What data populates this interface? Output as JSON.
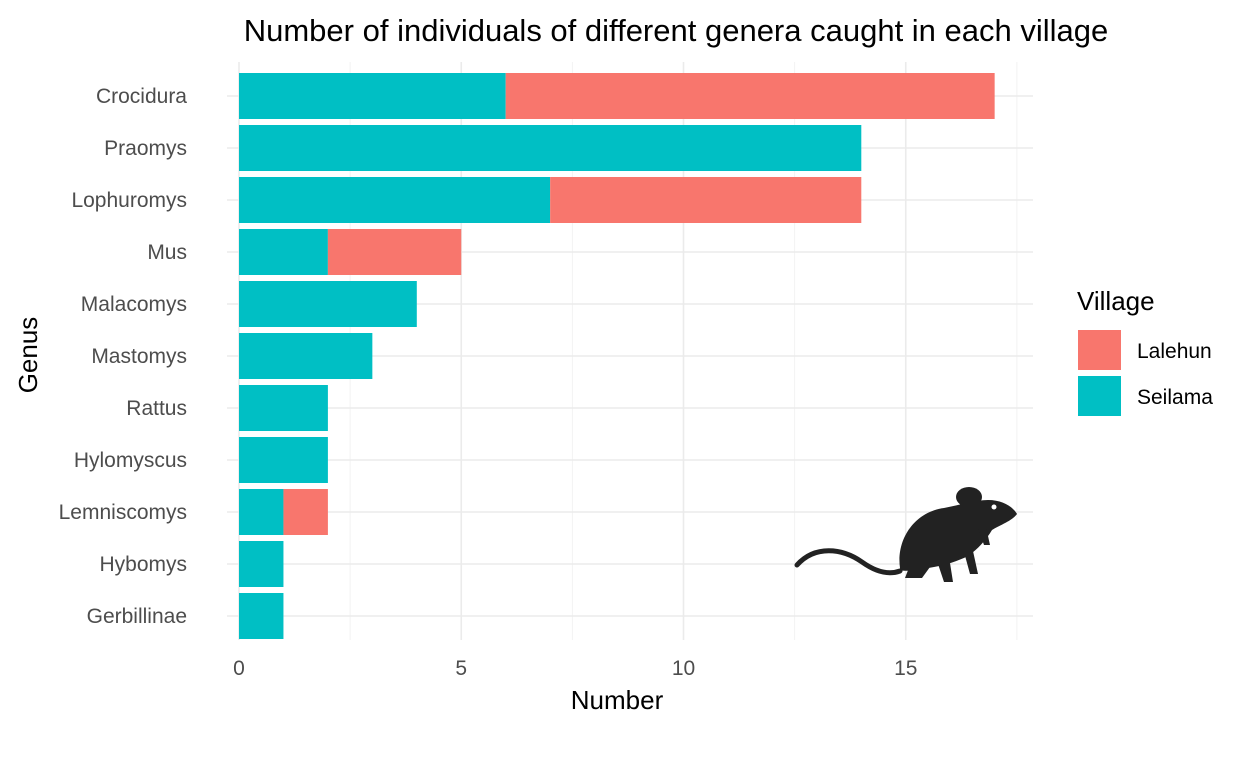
{
  "colors": {
    "Lalehun": "#F8766D",
    "Seilama": "#00BFC4",
    "silhouette": "#222222"
  },
  "icon": "rat-silhouette-icon",
  "chart_data": {
    "type": "bar",
    "orientation": "horizontal",
    "stacked": true,
    "title": "Number of individuals of different genera caught in each village",
    "xlabel": "Number",
    "ylabel": "Genus",
    "categories": [
      "Crocidura",
      "Praomys",
      "Lophuromys",
      "Mus",
      "Malacomys",
      "Mastomys",
      "Rattus",
      "Hylomyscus",
      "Lemniscomys",
      "Hybomys",
      "Gerbillinae"
    ],
    "series": [
      {
        "name": "Seilama",
        "values": [
          6,
          14,
          7,
          2,
          4,
          3,
          2,
          2,
          1,
          1,
          1
        ]
      },
      {
        "name": "Lalehun",
        "values": [
          11,
          0,
          7,
          3,
          0,
          0,
          0,
          0,
          1,
          0,
          0
        ]
      }
    ],
    "xlim": [
      0,
      17.85
    ],
    "xticks": [
      0,
      5,
      10,
      15
    ],
    "xtick_labels": [
      "0",
      "5",
      "10",
      "15"
    ],
    "grid": true,
    "legend": {
      "title": "Village",
      "position": "right",
      "entries": [
        "Lalehun",
        "Seilama"
      ]
    }
  }
}
